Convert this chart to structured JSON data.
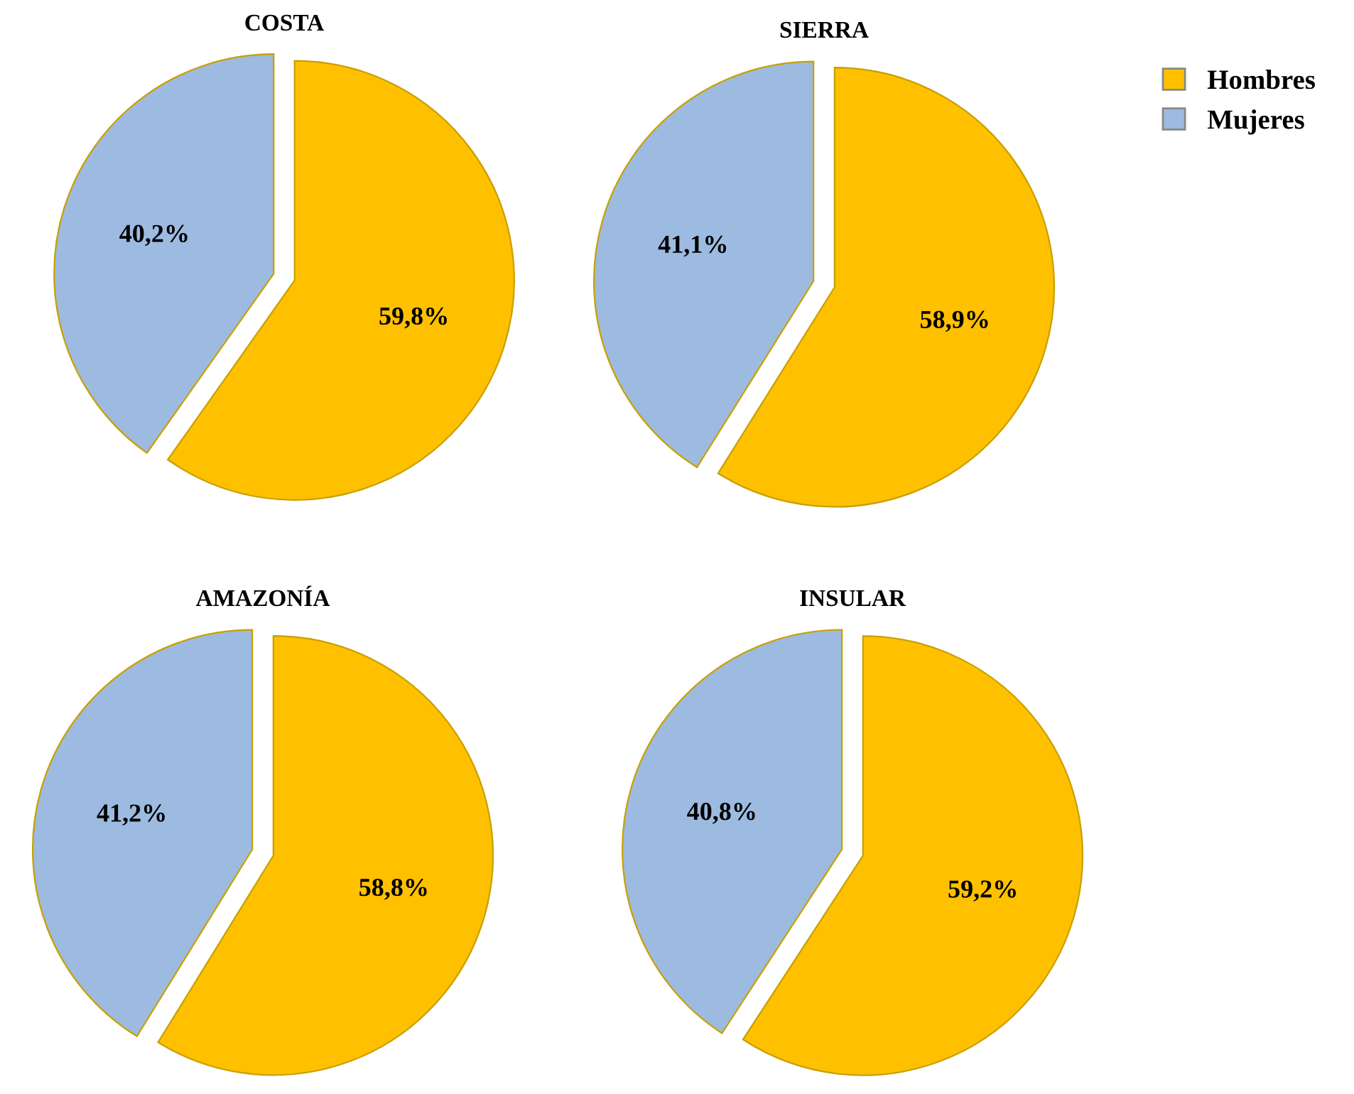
{
  "chart_data": [
    {
      "type": "pie",
      "title": "COSTA",
      "categories": [
        "Hombres",
        "Mujeres"
      ],
      "values": [
        59.8,
        40.2
      ],
      "colors": [
        "#ffc000",
        "#9dbbe0"
      ],
      "value_labels": [
        "59,8%",
        "40,2%"
      ],
      "legend": "top right"
    },
    {
      "type": "pie",
      "title": "SIERRA",
      "categories": [
        null,
        null
      ],
      "values": [
        58.9,
        41.1
      ],
      "colors": [
        "#ffc000",
        "#9dbbe0"
      ],
      "value_labels": [
        "58,9%",
        "41,1%"
      ]
    },
    {
      "type": "pie",
      "title": "AMAZONÍA",
      "categories": [
        null,
        null
      ],
      "values": [
        58.8,
        41.2
      ],
      "colors": [
        "#ffc000",
        "#9dbbe0"
      ],
      "value_labels": [
        "58,8%",
        "41,2%"
      ]
    },
    {
      "type": "pie",
      "title": "INSULAR",
      "categories": [
        null,
        null
      ],
      "values": [
        59.2,
        40.8
      ],
      "colors": [
        "#ffc000",
        "#9dbbe0"
      ],
      "value_labels": [
        "59,2%",
        "40,8%"
      ]
    }
  ]
}
